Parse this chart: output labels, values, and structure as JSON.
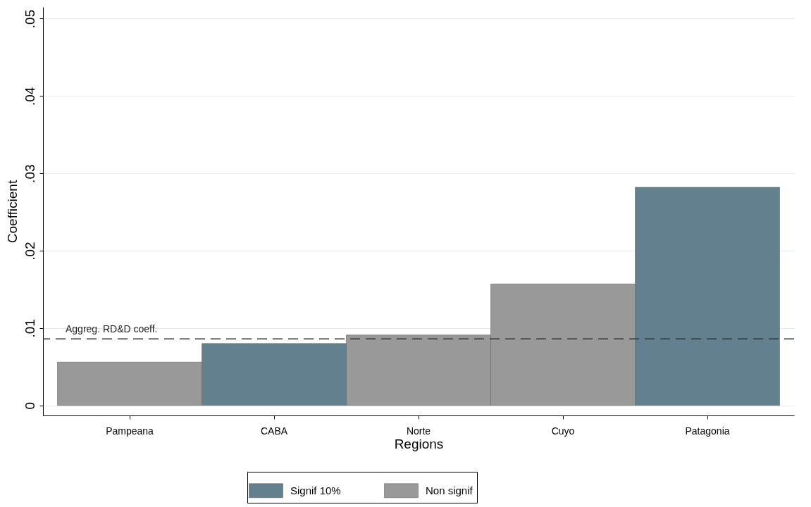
{
  "chart_data": {
    "type": "bar",
    "xlabel": "Regions",
    "ylabel": "Coefficient",
    "categories": [
      "Pampeana",
      "CABA",
      "Norte",
      "Cuyo",
      "Patagonia"
    ],
    "series": [
      {
        "name": "Signif 10%",
        "color": "#62808f",
        "values": [
          null,
          0.008,
          null,
          null,
          0.0282
        ]
      },
      {
        "name": "Non signif",
        "color": "#999999",
        "values": [
          0.0056,
          null,
          0.0091,
          0.0157,
          null
        ]
      }
    ],
    "ylim": [
      -0.0013,
      0.0515
    ],
    "yticks": [
      {
        "value": 0,
        "label": "0"
      },
      {
        "value": 0.01,
        "label": ".01"
      },
      {
        "value": 0.02,
        "label": ".02"
      },
      {
        "value": 0.03,
        "label": ".03"
      },
      {
        "value": 0.04,
        "label": ".04"
      },
      {
        "value": 0.05,
        "label": ".05"
      }
    ],
    "grid": "y",
    "legend": "bottom",
    "ref_lines": [
      {
        "axis": "y",
        "value": 0.0086,
        "label": "Aggreg. RD&D coeff.",
        "line_style": "dashed",
        "color": "#333333"
      }
    ]
  }
}
